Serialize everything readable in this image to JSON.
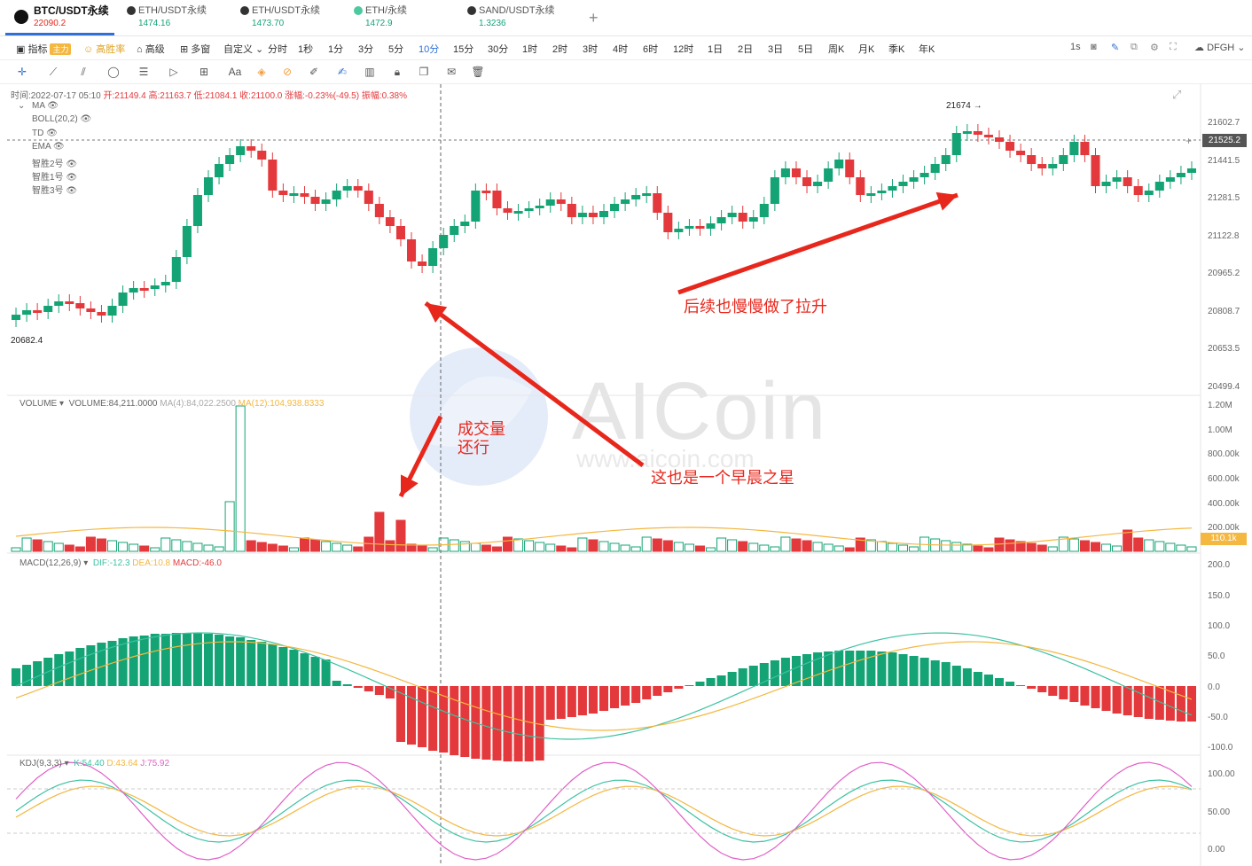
{
  "tabs": [
    {
      "name": "BTC/USDT永续",
      "price": "22090.2",
      "color": "#e8271c",
      "active": true
    },
    {
      "name": "ETH/USDT永续",
      "price": "1474.16",
      "color": "#14a27b",
      "active": false
    },
    {
      "name": "ETH/USDT永续",
      "price": "1473.70",
      "color": "#14a27b",
      "active": false
    },
    {
      "name": "ETH/永续",
      "price": "1472.9",
      "color": "#14a27b",
      "active": false
    },
    {
      "name": "SAND/USDT永续",
      "price": "1.3236",
      "color": "#14a27b",
      "active": false
    }
  ],
  "add_tab": "+",
  "periodbar": {
    "indicator": "指标",
    "zhuli": "主力",
    "gaoshenglv": "高胜率",
    "gaoji": "高级",
    "duochuang": "多窗",
    "zidingyi": "自定义",
    "periods": [
      "分时",
      "1秒",
      "1分",
      "3分",
      "5分",
      "10分",
      "15分",
      "30分",
      "1时",
      "2时",
      "3时",
      "4时",
      "6时",
      "12时",
      "1日",
      "2日",
      "3日",
      "5日",
      "周K",
      "月K",
      "季K",
      "年K"
    ],
    "selected": "10分",
    "right_label": "1s",
    "user": "DFGH"
  },
  "drawtools": [
    "crosshair-icon",
    "line-icon",
    "parallel-icon",
    "fib-icon",
    "circle-icon",
    "wave-icon",
    "pattern-icon",
    "measure-icon",
    "text-icon",
    "marker-icon",
    "erase-icon",
    "pencil-icon",
    "highlight-icon",
    "candles-icon",
    "lock-icon",
    "copy-icon",
    "note-icon",
    "trash-icon"
  ],
  "drawtools_text": {
    "text_tool": "Aa"
  },
  "info": {
    "time": "时间:2022-07-17 05:10",
    "open": "开:21149.4",
    "high": "高:21163.7",
    "low": "低:21084.1",
    "close": "收:21100.0",
    "change": "涨幅:-0.23%(-49.5)",
    "amp": "振幅:0.38%"
  },
  "overlays": [
    "MA",
    "BOLL(20,2)",
    "TD",
    "EMA",
    "智胜2号",
    "智胜1号",
    "智胜3号"
  ],
  "price_axis": [
    "21602.7",
    "21441.5",
    "21281.5",
    "21122.8",
    "20965.2",
    "20808.7",
    "20653.5",
    "20499.4"
  ],
  "current_price": "21525.2",
  "high_label": "21674 →",
  "low_label": "20682.4",
  "volume": {
    "name": "VOLUME",
    "value": "VOLUME:84,211.0000",
    "ma4": "MA(4):84,022.2500",
    "ma12": "MA(12):104,938.8333",
    "axis": [
      "1.20M",
      "1.00M",
      "800.00k",
      "600.00k",
      "400.00k",
      "200.00k"
    ],
    "tag": "110.1k"
  },
  "macd": {
    "name": "MACD(12,26,9)",
    "dif": "DIF:-12.3",
    "dea": "DEA:10.8",
    "macd": "MACD:-46.0",
    "axis": [
      "200.0",
      "150.0",
      "100.0",
      "50.0",
      "0.0",
      "-50.0",
      "-100.0"
    ]
  },
  "kdj": {
    "name": "KDJ(9,3,3)",
    "k": "K:54.40",
    "d": "D:43.64",
    "j": "J:75.92",
    "axis": [
      "100.00",
      "50.00",
      "0.00"
    ]
  },
  "annotations": {
    "a1": "后续也慢慢做了拉升",
    "a2": "成交量\n还行",
    "a3": "这也是一个早晨之星"
  },
  "watermark": {
    "logo": "AICoin",
    "url": "www.aicoin.com"
  },
  "colors": {
    "up": "#13a374",
    "down": "#e4393c",
    "accent": "#2f6fd6",
    "annot": "#e8271c"
  }
}
